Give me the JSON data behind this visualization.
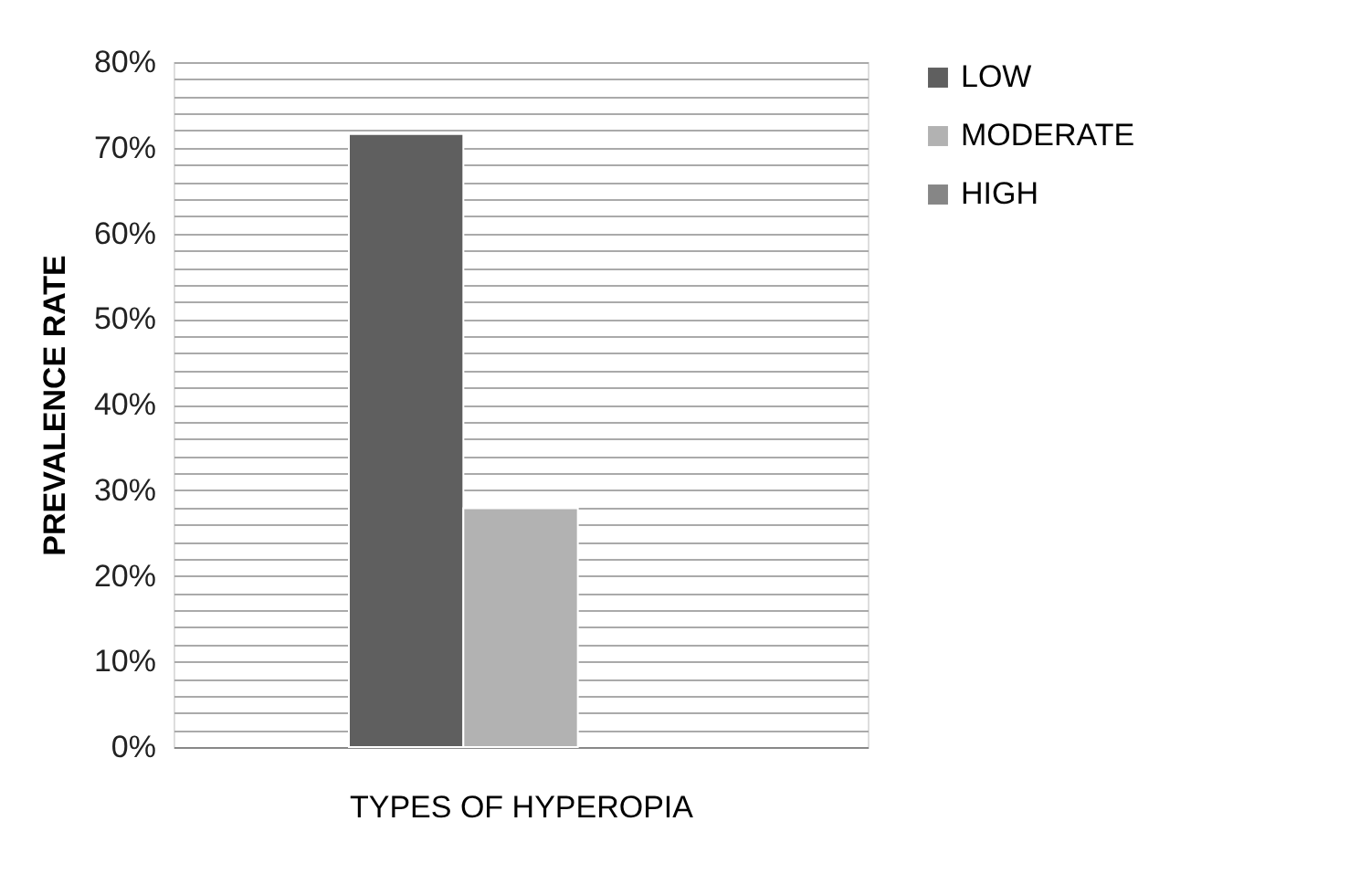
{
  "chart_data": {
    "type": "bar",
    "xlabel": "TYPES OF HYPEROPIA",
    "ylabel": "PREVALENCE RATE",
    "categories": [
      null
    ],
    "series": [
      {
        "name": "LOW",
        "color": "#5f5f5f",
        "values": [
          71.6
        ]
      },
      {
        "name": "MODERATE",
        "color": "#b2b2b2",
        "values": [
          27.9
        ]
      },
      {
        "name": "HIGH",
        "color": "#868686",
        "values": [
          null
        ]
      }
    ],
    "ylim": [
      0,
      80
    ],
    "yticks": [
      {
        "value": 0,
        "label": "0%"
      },
      {
        "value": 2,
        "label": null
      },
      {
        "value": 4,
        "label": null
      },
      {
        "value": 6,
        "label": null
      },
      {
        "value": 8,
        "label": null
      },
      {
        "value": 10,
        "label": "10%"
      },
      {
        "value": 12,
        "label": null
      },
      {
        "value": 14,
        "label": null
      },
      {
        "value": 16,
        "label": null
      },
      {
        "value": 18,
        "label": null
      },
      {
        "value": 20,
        "label": "20%"
      },
      {
        "value": 22,
        "label": null
      },
      {
        "value": 24,
        "label": null
      },
      {
        "value": 26,
        "label": null
      },
      {
        "value": 28,
        "label": null
      },
      {
        "value": 30,
        "label": "30%"
      },
      {
        "value": 32,
        "label": null
      },
      {
        "value": 34,
        "label": null
      },
      {
        "value": 36,
        "label": null
      },
      {
        "value": 38,
        "label": null
      },
      {
        "value": 40,
        "label": "40%"
      },
      {
        "value": 42,
        "label": null
      },
      {
        "value": 44,
        "label": null
      },
      {
        "value": 46,
        "label": null
      },
      {
        "value": 48,
        "label": null
      },
      {
        "value": 50,
        "label": "50%"
      },
      {
        "value": 52,
        "label": null
      },
      {
        "value": 54,
        "label": null
      },
      {
        "value": 56,
        "label": null
      },
      {
        "value": 58,
        "label": null
      },
      {
        "value": 60,
        "label": "60%"
      },
      {
        "value": 62,
        "label": null
      },
      {
        "value": 64,
        "label": null
      },
      {
        "value": 66,
        "label": null
      },
      {
        "value": 68,
        "label": null
      },
      {
        "value": 70,
        "label": "70%"
      },
      {
        "value": 72,
        "label": null
      },
      {
        "value": 74,
        "label": null
      },
      {
        "value": 76,
        "label": null
      },
      {
        "value": 78,
        "label": null
      },
      {
        "value": 80,
        "label": "80%"
      }
    ],
    "grid": true,
    "legend": "right",
    "tick_labels": "y"
  }
}
